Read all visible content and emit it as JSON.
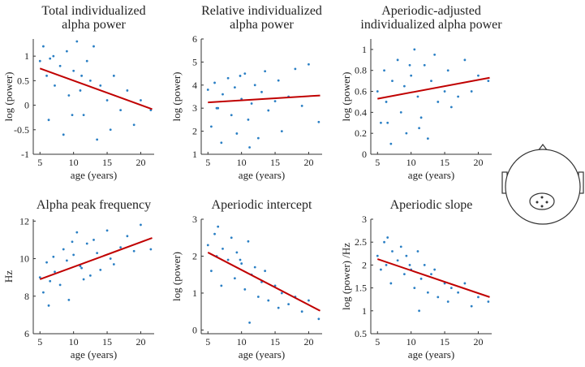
{
  "chart_data": [
    {
      "type": "scatter",
      "title": [
        "Total individualized",
        "alpha power"
      ],
      "xlabel": "age (years)",
      "ylabel": "log (power)",
      "xlim": [
        4,
        22
      ],
      "ylim": [
        -1,
        1.35
      ],
      "xticks": [
        5,
        10,
        15,
        20
      ],
      "yticks": [
        -1,
        -0.5,
        0,
        0.5,
        1
      ],
      "color": "#2a7fc4",
      "x": [
        5,
        5.5,
        6,
        6.3,
        7,
        7.2,
        8,
        8.5,
        9,
        9.3,
        10,
        10.5,
        11,
        11.5,
        12,
        12.5,
        13,
        13.5,
        14,
        15,
        15.5,
        16,
        17,
        18,
        19,
        20,
        21.5,
        6.5,
        9.8,
        11.2
      ],
      "values": [
        0.9,
        1.2,
        0.6,
        -0.3,
        1.0,
        0.4,
        0.8,
        -0.6,
        1.1,
        0.2,
        0.7,
        1.3,
        0.3,
        -0.2,
        0.9,
        0.5,
        1.2,
        -0.7,
        0.4,
        0.1,
        -0.5,
        0.6,
        -0.1,
        0.3,
        -0.4,
        0.1,
        -0.1,
        0.95,
        -0.2,
        0.6
      ],
      "fit": {
        "x": [
          5,
          21.7
        ],
        "values": [
          0.75,
          -0.08
        ],
        "color": "#c00000"
      }
    },
    {
      "type": "scatter",
      "title": [
        "Relative individualized",
        "alpha power"
      ],
      "xlabel": "age (years)",
      "ylabel": "log (power)",
      "xlim": [
        4,
        22
      ],
      "ylim": [
        1,
        6
      ],
      "xticks": [
        5,
        10,
        15,
        20
      ],
      "yticks": [
        1,
        2,
        3,
        4,
        5,
        6
      ],
      "color": "#2a7fc4",
      "x": [
        5,
        5.5,
        6,
        6.3,
        7,
        7.2,
        8,
        8.5,
        9,
        9.3,
        10,
        10.5,
        11,
        11.5,
        12,
        12.5,
        13,
        13.5,
        14,
        15,
        15.5,
        16,
        17,
        18,
        19,
        20,
        21.5,
        6.5,
        9.8,
        11.2
      ],
      "values": [
        3.8,
        2.2,
        4.1,
        3.0,
        1.5,
        3.6,
        4.3,
        2.7,
        3.9,
        1.9,
        3.4,
        4.5,
        2.5,
        3.2,
        4.0,
        1.7,
        3.7,
        4.6,
        2.9,
        3.3,
        4.2,
        2.0,
        3.5,
        4.7,
        3.1,
        4.9,
        2.4,
        3.0,
        4.4,
        1.3
      ],
      "fit": {
        "x": [
          5,
          21.7
        ],
        "values": [
          3.25,
          3.55
        ],
        "color": "#c00000"
      }
    },
    {
      "type": "scatter",
      "title": [
        "Aperiodic-adjusted",
        "individualized alpha power"
      ],
      "xlabel": "age (years)",
      "ylabel": "log (power)",
      "xlim": [
        4,
        22
      ],
      "ylim": [
        0,
        1.1
      ],
      "xticks": [
        5,
        10,
        15,
        20
      ],
      "yticks": [
        0,
        0.2,
        0.4,
        0.6,
        0.8,
        1
      ],
      "color": "#2a7fc4",
      "x": [
        5,
        5.5,
        6,
        6.3,
        7,
        7.2,
        8,
        8.5,
        9,
        9.3,
        10,
        10.5,
        11,
        11.5,
        12,
        12.5,
        13,
        13.5,
        14,
        15,
        15.5,
        16,
        17,
        18,
        19,
        20,
        21.5,
        6.5,
        9.8,
        11.2
      ],
      "values": [
        0.6,
        0.3,
        0.8,
        0.5,
        0.1,
        0.7,
        0.9,
        0.4,
        0.65,
        0.2,
        0.75,
        1.0,
        0.55,
        0.35,
        0.85,
        0.15,
        0.7,
        0.95,
        0.5,
        0.6,
        0.8,
        0.45,
        0.55,
        0.9,
        0.6,
        0.75,
        0.7,
        0.3,
        0.85,
        0.25
      ],
      "fit": {
        "x": [
          5,
          21.7
        ],
        "values": [
          0.53,
          0.73
        ],
        "color": "#c00000"
      }
    },
    {
      "type": "scatter",
      "title": [
        "Alpha peak frequency"
      ],
      "xlabel": "age (years)",
      "ylabel": "Hz",
      "xlim": [
        4,
        22
      ],
      "ylim": [
        6,
        12.1
      ],
      "xticks": [
        5,
        10,
        15,
        20
      ],
      "yticks": [
        6,
        8,
        10,
        12
      ],
      "color": "#2a7fc4",
      "x": [
        5,
        5.5,
        6,
        6.3,
        7,
        7.2,
        8,
        8.5,
        9,
        9.3,
        10,
        10.5,
        11,
        11.5,
        12,
        12.5,
        13,
        13.5,
        14,
        15,
        15.5,
        16,
        17,
        18,
        19,
        20,
        21.5,
        6.5,
        9.8,
        11.2
      ],
      "values": [
        9,
        8.2,
        9.8,
        7.5,
        10.1,
        9.3,
        8.6,
        10.5,
        9.9,
        7.8,
        10.2,
        11.4,
        9.6,
        8.9,
        10.8,
        9.1,
        11.0,
        10.3,
        9.4,
        11.5,
        10.0,
        9.7,
        10.6,
        11.2,
        10.4,
        11.8,
        10.5,
        8.8,
        10.9,
        9.5
      ],
      "fit": {
        "x": [
          5,
          21.7
        ],
        "values": [
          8.9,
          11.1
        ],
        "color": "#c00000"
      }
    },
    {
      "type": "scatter",
      "title": [
        "Aperiodic intercept"
      ],
      "xlabel": "age (years)",
      "ylabel": "log (power)",
      "xlim": [
        4,
        22
      ],
      "ylim": [
        -0.1,
        3
      ],
      "xticks": [
        5,
        10,
        15,
        20
      ],
      "yticks": [
        0,
        1,
        2,
        3
      ],
      "color": "#2a7fc4",
      "x": [
        5,
        5.5,
        6,
        6.3,
        7,
        7.2,
        8,
        8.5,
        9,
        9.3,
        10,
        10.5,
        11,
        11.5,
        12,
        12.5,
        13,
        13.5,
        14,
        15,
        15.5,
        16,
        17,
        18,
        19,
        20,
        21.5,
        6.5,
        9.8,
        11.2
      ],
      "values": [
        2.3,
        1.6,
        2.6,
        2.0,
        1.2,
        2.2,
        1.9,
        2.5,
        1.4,
        2.1,
        1.8,
        1.1,
        2.4,
        1.5,
        1.7,
        0.9,
        1.3,
        1.6,
        0.8,
        1.2,
        0.6,
        1.0,
        0.7,
        0.9,
        0.5,
        0.8,
        0.3,
        2.8,
        1.9,
        0.2
      ],
      "fit": {
        "x": [
          5,
          21.7
        ],
        "values": [
          2.1,
          0.52
        ],
        "color": "#c00000"
      }
    },
    {
      "type": "scatter",
      "title": [
        "Aperiodic slope"
      ],
      "xlabel": "age (years)",
      "ylabel": "log (power) /Hz",
      "xlim": [
        4,
        22
      ],
      "ylim": [
        0.5,
        3
      ],
      "xticks": [
        5,
        10,
        15,
        20
      ],
      "yticks": [
        0.5,
        1,
        1.5,
        2,
        2.5,
        3
      ],
      "color": "#2a7fc4",
      "x": [
        5,
        5.5,
        6,
        6.3,
        7,
        7.2,
        8,
        8.5,
        9,
        9.3,
        10,
        10.5,
        11,
        11.5,
        12,
        12.5,
        13,
        13.5,
        14,
        15,
        15.5,
        16,
        17,
        18,
        19,
        20,
        21.5,
        6.5,
        9.8,
        11.2
      ],
      "values": [
        2.2,
        1.9,
        2.5,
        2.0,
        1.6,
        2.3,
        2.1,
        2.4,
        1.8,
        2.2,
        1.9,
        1.5,
        2.3,
        1.7,
        2.0,
        1.4,
        1.8,
        1.9,
        1.3,
        1.6,
        1.2,
        1.5,
        1.4,
        1.6,
        1.1,
        1.3,
        1.2,
        2.6,
        2.0,
        1.0
      ],
      "fit": {
        "x": [
          5,
          21.7
        ],
        "values": [
          2.13,
          1.3
        ],
        "color": "#c00000"
      }
    }
  ]
}
